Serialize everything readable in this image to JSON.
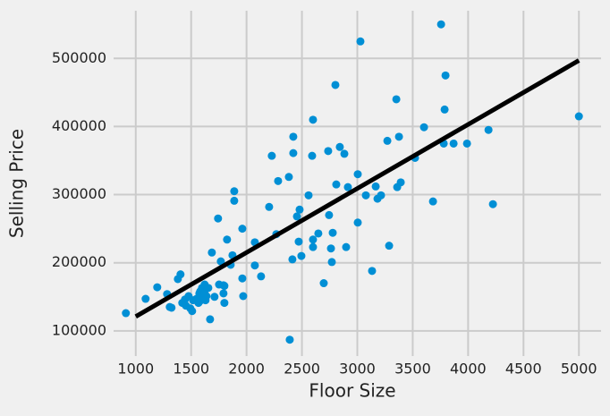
{
  "chart_data": {
    "type": "scatter",
    "x_label": "Floor Size",
    "y_label": "Selling Price",
    "xlim": [
      800,
      5200
    ],
    "ylim": [
      63000,
      570000
    ],
    "xticks": [
      1000,
      1500,
      2000,
      2500,
      3000,
      3500,
      4000,
      4500,
      5000
    ],
    "yticks": [
      100000,
      200000,
      300000,
      400000,
      500000
    ],
    "grid": true,
    "series": [
      {
        "color": "#008fd5",
        "x": [
          911,
          1089,
          1194,
          1283,
          1307,
          1323,
          1380,
          1404,
          1420,
          1444,
          1453,
          1477,
          1493,
          1509,
          1517,
          1549,
          1566,
          1574,
          1582,
          1582,
          1590,
          1598,
          1622,
          1622,
          1630,
          1655,
          1638,
          1671,
          1687,
          1711,
          1743,
          1752,
          1768,
          1792,
          1792,
          1800,
          1800,
          1824,
          1857,
          1873,
          1889,
          1889,
          1962,
          1962,
          1970,
          2075,
          2075,
          2131,
          2204,
          2228,
          2269,
          2285,
          2382,
          2390,
          2414,
          2422,
          2422,
          2455,
          2471,
          2479,
          2495,
          2560,
          2592,
          2600,
          2600,
          2600,
          2648,
          2697,
          2737,
          2745,
          2762,
          2770,
          2778,
          2802,
          2810,
          2842,
          2883,
          2899,
          2915,
          3004,
          3004,
          3028,
          3077,
          3133,
          3166,
          3182,
          3214,
          3271,
          3287,
          3352,
          3360,
          3376,
          3392,
          3521,
          3602,
          3683,
          3756,
          3780,
          3796,
          3788,
          3869,
          3990,
          4184,
          4224,
          5000
        ],
        "values": [
          126000,
          147000,
          164000,
          154000,
          135000,
          134000,
          176000,
          183000,
          141000,
          146000,
          137000,
          151000,
          133000,
          129000,
          145000,
          147000,
          141000,
          155000,
          151000,
          158000,
          145000,
          163000,
          168000,
          155000,
          145000,
          163000,
          151000,
          117000,
          215000,
          150000,
          265000,
          168000,
          202000,
          155000,
          167000,
          141000,
          166000,
          234000,
          197000,
          211000,
          305000,
          291000,
          250000,
          177000,
          151000,
          230000,
          196000,
          180000,
          282000,
          357000,
          242000,
          320000,
          326000,
          87000,
          205000,
          385000,
          361000,
          268000,
          231000,
          278000,
          210000,
          299000,
          357000,
          410000,
          234000,
          223000,
          243000,
          170000,
          364000,
          270000,
          221000,
          201000,
          244000,
          461000,
          315000,
          370000,
          360000,
          223000,
          311000,
          330000,
          259000,
          525000,
          299000,
          188000,
          312000,
          294000,
          299000,
          379000,
          225000,
          440000,
          311000,
          385000,
          318000,
          354000,
          399000,
          290000,
          550000,
          375000,
          475000,
          425000,
          375000,
          375000,
          395000,
          286000,
          415000
        ]
      }
    ],
    "fit_line": {
      "color": "#000000",
      "x": [
        1000,
        5000
      ],
      "values": [
        121000,
        497000
      ]
    }
  }
}
